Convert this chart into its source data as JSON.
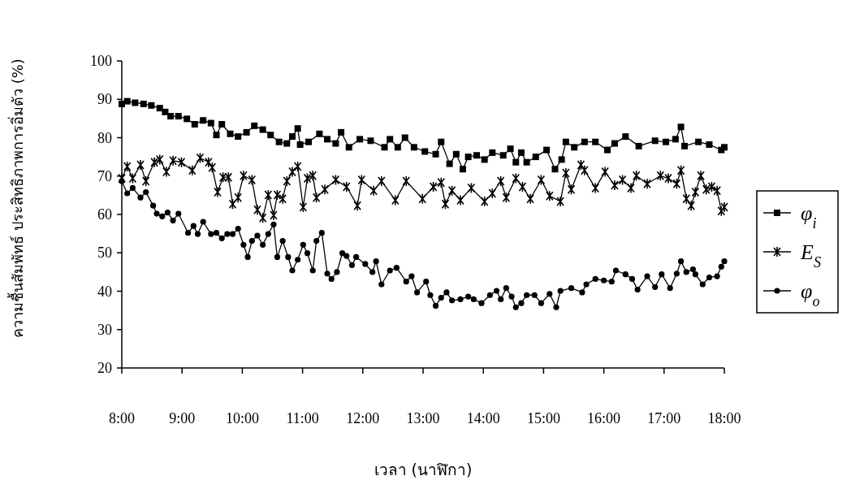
{
  "chart_data": {
    "type": "line",
    "xlabel": "เวลา (นาฬิกา)",
    "ylabel": "ความชื้นสัมพัทธ์ ประสิทธิภาพการอิ่มตัว (%)",
    "xlim": [
      8,
      18
    ],
    "ylim": [
      20,
      100
    ],
    "xticks": [
      {
        "value": 8,
        "label": "8:00"
      },
      {
        "value": 9,
        "label": "9:00"
      },
      {
        "value": 10,
        "label": "10:00"
      },
      {
        "value": 11,
        "label": "11:00"
      },
      {
        "value": 12,
        "label": "12:00"
      },
      {
        "value": 13,
        "label": "13:00"
      },
      {
        "value": 14,
        "label": "14:00"
      },
      {
        "value": 15,
        "label": "15:00"
      },
      {
        "value": 16,
        "label": "16:00"
      },
      {
        "value": 17,
        "label": "17:00"
      },
      {
        "value": 18,
        "label": "18:00"
      }
    ],
    "yticks": [
      20,
      30,
      40,
      50,
      60,
      70,
      80,
      90,
      100
    ],
    "legend": "right",
    "grid": false,
    "line_style": "solid",
    "series": [
      {
        "name": "φ$_{i}$",
        "color": "#000000",
        "marker": "square",
        "x": [
          8.0,
          8.09,
          8.22,
          8.36,
          8.49,
          8.63,
          8.72,
          8.81,
          8.94,
          9.08,
          9.21,
          9.35,
          9.48,
          9.57,
          9.66,
          9.8,
          9.93,
          10.07,
          10.2,
          10.34,
          10.47,
          10.61,
          10.74,
          10.83,
          10.92,
          10.96,
          11.1,
          11.28,
          11.41,
          11.55,
          11.64,
          11.77,
          11.95,
          12.13,
          12.36,
          12.45,
          12.58,
          12.7,
          12.85,
          13.03,
          13.21,
          13.3,
          13.44,
          13.55,
          13.66,
          13.75,
          13.89,
          14.02,
          14.15,
          14.33,
          14.45,
          14.54,
          14.63,
          14.72,
          14.87,
          15.05,
          15.19,
          15.3,
          15.37,
          15.51,
          15.68,
          15.86,
          16.06,
          16.18,
          16.36,
          16.58,
          16.85,
          17.03,
          17.19,
          17.28,
          17.34,
          17.57,
          17.75,
          17.95,
          18.0
        ],
        "values": [
          88.8,
          89.5,
          89.1,
          88.8,
          88.4,
          87.7,
          86.7,
          85.6,
          85.6,
          84.9,
          83.5,
          84.5,
          83.8,
          80.7,
          83.5,
          81.0,
          80.3,
          81.4,
          83.1,
          82.1,
          80.7,
          78.9,
          78.5,
          80.3,
          82.4,
          78.2,
          78.9,
          81.0,
          79.6,
          78.5,
          81.4,
          77.5,
          79.6,
          79.2,
          77.5,
          79.6,
          77.5,
          80.0,
          77.5,
          76.4,
          75.7,
          78.9,
          73.2,
          75.7,
          71.8,
          75.0,
          75.4,
          74.3,
          76.1,
          75.4,
          77.1,
          73.6,
          76.1,
          73.6,
          75.0,
          76.8,
          71.8,
          74.3,
          78.9,
          77.5,
          78.9,
          78.9,
          76.8,
          78.5,
          80.3,
          77.8,
          79.2,
          78.9,
          79.6,
          82.8,
          77.8,
          78.9,
          78.2,
          76.8,
          77.5
        ]
      },
      {
        "name": "E$_{S}$",
        "color": "#000000",
        "marker": "cross",
        "x": [
          8.0,
          8.09,
          8.18,
          8.31,
          8.4,
          8.54,
          8.63,
          8.74,
          8.85,
          8.99,
          9.17,
          9.3,
          9.44,
          9.5,
          9.59,
          9.68,
          9.77,
          9.84,
          9.93,
          10.02,
          10.16,
          10.25,
          10.34,
          10.43,
          10.52,
          10.58,
          10.67,
          10.74,
          10.83,
          10.92,
          11.01,
          11.08,
          11.17,
          11.23,
          11.37,
          11.55,
          11.73,
          11.91,
          11.98,
          12.18,
          12.31,
          12.54,
          12.72,
          12.99,
          13.17,
          13.3,
          13.37,
          13.48,
          13.62,
          13.8,
          14.02,
          14.15,
          14.29,
          14.38,
          14.54,
          14.65,
          14.78,
          14.96,
          15.1,
          15.28,
          15.37,
          15.46,
          15.62,
          15.68,
          15.86,
          16.02,
          16.18,
          16.31,
          16.45,
          16.54,
          16.72,
          16.94,
          17.07,
          17.21,
          17.28,
          17.37,
          17.45,
          17.52,
          17.61,
          17.7,
          17.79,
          17.88,
          17.95,
          18.0
        ],
        "values": [
          69.4,
          72.5,
          69.4,
          72.9,
          68.7,
          73.6,
          74.3,
          71.1,
          74.0,
          73.6,
          71.5,
          74.7,
          73.6,
          72.2,
          65.8,
          69.7,
          69.7,
          62.7,
          64.4,
          70.1,
          69.0,
          61.2,
          59.1,
          65.1,
          59.8,
          65.1,
          64.1,
          68.7,
          71.1,
          72.5,
          61.9,
          69.4,
          70.1,
          64.4,
          66.5,
          69.0,
          67.2,
          62.3,
          69.0,
          66.2,
          68.7,
          63.7,
          68.7,
          64.1,
          67.2,
          68.3,
          62.7,
          66.2,
          63.7,
          66.9,
          63.4,
          65.5,
          68.7,
          64.4,
          69.4,
          67.2,
          64.1,
          69.0,
          64.8,
          63.4,
          70.8,
          66.5,
          72.9,
          71.5,
          66.9,
          71.1,
          67.6,
          69.0,
          66.9,
          70.1,
          68.0,
          70.1,
          69.4,
          68.0,
          71.5,
          64.1,
          62.3,
          65.8,
          70.1,
          66.5,
          67.2,
          66.2,
          60.9,
          61.9
        ]
      },
      {
        "name": "φ$_{o}$",
        "color": "#000000",
        "marker": "circle",
        "x": [
          8.0,
          8.09,
          8.18,
          8.31,
          8.4,
          8.52,
          8.58,
          8.67,
          8.76,
          8.85,
          8.94,
          9.1,
          9.19,
          9.26,
          9.35,
          9.48,
          9.57,
          9.66,
          9.75,
          9.84,
          9.93,
          10.02,
          10.09,
          10.16,
          10.25,
          10.34,
          10.43,
          10.52,
          10.58,
          10.67,
          10.76,
          10.83,
          10.92,
          11.01,
          11.08,
          11.17,
          11.23,
          11.32,
          11.41,
          11.48,
          11.57,
          11.66,
          11.73,
          11.82,
          11.89,
          12.04,
          12.16,
          12.22,
          12.31,
          12.45,
          12.56,
          12.72,
          12.81,
          12.9,
          13.05,
          13.12,
          13.21,
          13.3,
          13.39,
          13.48,
          13.62,
          13.75,
          13.84,
          13.97,
          14.11,
          14.22,
          14.29,
          14.38,
          14.47,
          14.54,
          14.63,
          14.72,
          14.85,
          14.96,
          15.1,
          15.21,
          15.28,
          15.46,
          15.64,
          15.71,
          15.86,
          16.0,
          16.13,
          16.2,
          16.36,
          16.47,
          16.56,
          16.72,
          16.85,
          16.96,
          17.1,
          17.21,
          17.28,
          17.37,
          17.48,
          17.52,
          17.64,
          17.75,
          17.88,
          17.95,
          18.0
        ],
        "values": [
          68.7,
          65.5,
          66.9,
          64.4,
          65.8,
          62.3,
          60.2,
          59.5,
          60.5,
          58.4,
          60.2,
          55.2,
          57.0,
          54.9,
          58.1,
          54.9,
          55.2,
          53.8,
          54.9,
          54.9,
          56.3,
          52.1,
          48.9,
          53.1,
          54.5,
          52.1,
          54.9,
          57.4,
          48.9,
          53.1,
          48.9,
          45.4,
          48.2,
          52.1,
          49.9,
          45.4,
          53.1,
          55.2,
          44.6,
          43.2,
          45.0,
          49.9,
          49.2,
          46.8,
          48.9,
          47.1,
          45.0,
          47.8,
          41.8,
          45.4,
          46.1,
          42.5,
          43.9,
          39.7,
          42.5,
          39.0,
          36.2,
          38.3,
          39.7,
          37.6,
          37.9,
          38.6,
          37.9,
          36.9,
          39.0,
          40.1,
          37.9,
          40.8,
          38.6,
          35.8,
          36.9,
          39.0,
          39.0,
          36.9,
          39.3,
          35.8,
          40.1,
          40.8,
          39.7,
          41.8,
          43.2,
          42.8,
          42.5,
          45.4,
          44.4,
          43.2,
          40.4,
          43.9,
          41.1,
          44.4,
          40.8,
          44.6,
          47.8,
          45.0,
          45.7,
          44.4,
          41.8,
          43.6,
          43.9,
          46.4,
          47.8
        ]
      }
    ]
  }
}
